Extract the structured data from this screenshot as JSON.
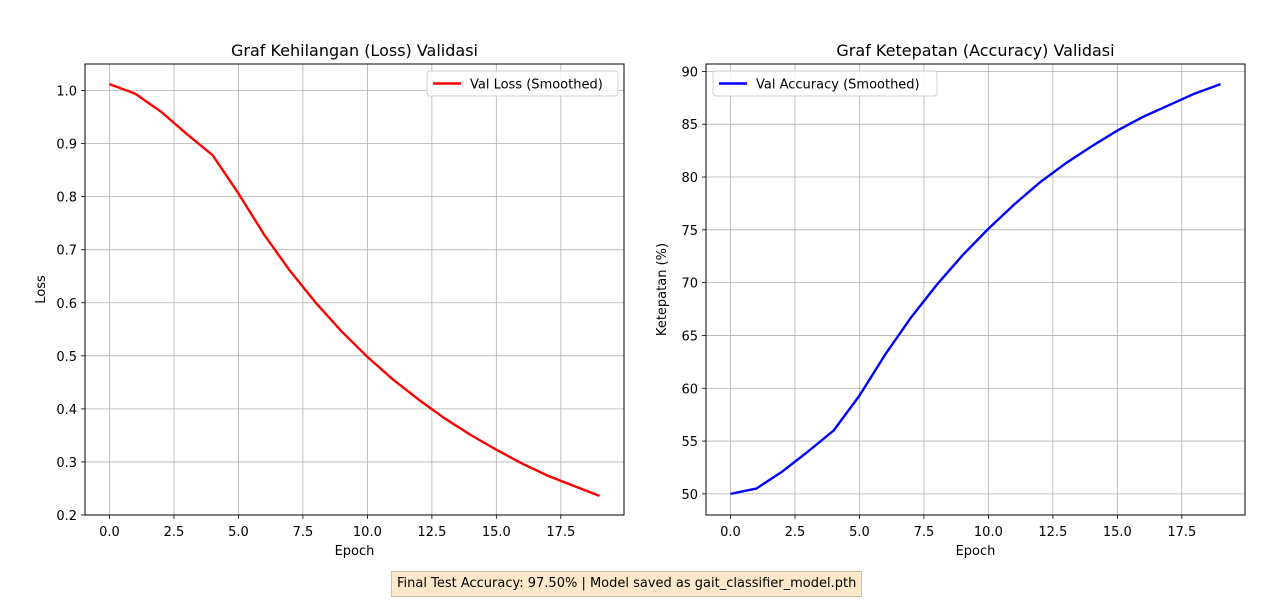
{
  "footer": {
    "text": "Final Test Accuracy: 97.50% | Model saved as gait_classifier_model.pth",
    "background": "#fde9c9"
  },
  "chart_data": [
    {
      "type": "line",
      "title": "Graf Kehilangan (Loss) Validasi",
      "xlabel": "Epoch",
      "ylabel": "Loss",
      "xlim": [
        -0.95,
        19.95
      ],
      "ylim": [
        0.2,
        1.05
      ],
      "xticks": [
        0,
        2.5,
        5,
        7.5,
        10,
        12.5,
        15,
        17.5
      ],
      "xtick_labels": [
        "0.0",
        "2.5",
        "5.0",
        "7.5",
        "10.0",
        "12.5",
        "15.0",
        "17.5"
      ],
      "yticks": [
        0.2,
        0.3,
        0.4,
        0.5,
        0.6,
        0.7,
        0.8,
        0.9,
        1.0
      ],
      "ytick_labels": [
        "0.2",
        "0.3",
        "0.4",
        "0.5",
        "0.6",
        "0.7",
        "0.8",
        "0.9",
        "1.0"
      ],
      "grid": true,
      "legend_position": "top-right",
      "series": [
        {
          "name": "Val Loss (Smoothed)",
          "color": "#ff0000",
          "x": [
            0,
            1,
            2,
            3,
            4,
            5,
            6,
            7,
            8,
            9,
            10,
            11,
            12,
            13,
            14,
            15,
            16,
            17,
            18,
            19
          ],
          "y": [
            1.012,
            0.994,
            0.96,
            0.918,
            0.878,
            0.806,
            0.728,
            0.66,
            0.6,
            0.546,
            0.498,
            0.455,
            0.417,
            0.382,
            0.351,
            0.323,
            0.297,
            0.274,
            0.255,
            0.236
          ]
        }
      ]
    },
    {
      "type": "line",
      "title": "Graf Ketepatan (Accuracy) Validasi",
      "xlabel": "Epoch",
      "ylabel": "Ketepatan (%)",
      "xlim": [
        -0.95,
        19.95
      ],
      "ylim": [
        48.0,
        90.7
      ],
      "xticks": [
        0,
        2.5,
        5,
        7.5,
        10,
        12.5,
        15,
        17.5
      ],
      "xtick_labels": [
        "0.0",
        "2.5",
        "5.0",
        "7.5",
        "10.0",
        "12.5",
        "15.0",
        "17.5"
      ],
      "yticks": [
        50,
        55,
        60,
        65,
        70,
        75,
        80,
        85,
        90
      ],
      "ytick_labels": [
        "50",
        "55",
        "60",
        "65",
        "70",
        "75",
        "80",
        "85",
        "90"
      ],
      "grid": true,
      "legend_position": "top-left",
      "series": [
        {
          "name": "Val Accuracy (Smoothed)",
          "color": "#0000ff",
          "x": [
            0,
            1,
            2,
            3,
            4,
            5,
            6,
            7,
            8,
            9,
            10,
            11,
            12,
            13,
            14,
            15,
            16,
            17,
            18,
            19
          ],
          "y": [
            50.0,
            50.5,
            52.1,
            54.0,
            56.0,
            59.3,
            63.2,
            66.7,
            69.8,
            72.6,
            75.1,
            77.4,
            79.5,
            81.3,
            82.9,
            84.4,
            85.7,
            86.8,
            87.9,
            88.8
          ]
        }
      ]
    }
  ]
}
